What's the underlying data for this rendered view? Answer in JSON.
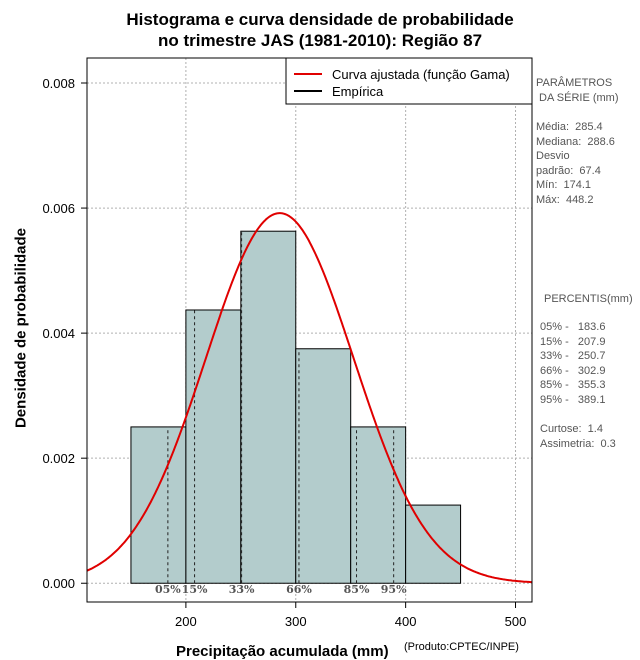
{
  "chart_data": {
    "type": "histogram",
    "title": "Histograma e curva densidade de probabilidade",
    "subtitle": "no trimestre JAS (1981-2010): Região 87",
    "xlabel": "Precipitação acumulada (mm)",
    "ylabel": "Densidade de probabilidade",
    "xlim": [
      110,
      515
    ],
    "ylim": [
      -0.0003,
      0.0084
    ],
    "x_ticks": [
      200,
      300,
      400,
      500
    ],
    "y_ticks": [
      0.0,
      0.002,
      0.004,
      0.006,
      0.008
    ],
    "y_tick_labels": [
      "0.000",
      "0.002",
      "0.004",
      "0.006",
      "0.008"
    ],
    "grid": true,
    "bin_edges": [
      150,
      200,
      250,
      300,
      350,
      400,
      450
    ],
    "densities": [
      0.0025,
      0.00437,
      0.00563,
      0.00375,
      0.0025,
      0.00125
    ],
    "bar_color": "#b3cccc",
    "curve": {
      "name": "Curva ajustada (função Gama)",
      "color": "#e00000",
      "mean": 285.4,
      "sd": 67.4
    },
    "legend": [
      {
        "label": "Curva ajustada (função Gama)",
        "color": "#e00000"
      },
      {
        "label": "Empírica",
        "color": "#000000"
      }
    ],
    "legend_position": "top-right",
    "percentile_lines": [
      {
        "label": "05%",
        "value": 183.6
      },
      {
        "label": "15%",
        "value": 207.9
      },
      {
        "label": "33%",
        "value": 250.7
      },
      {
        "label": "66%",
        "value": 302.9
      },
      {
        "label": "85%",
        "value": 355.3
      },
      {
        "label": "95%",
        "value": 389.1
      }
    ]
  },
  "credit": "(Produto:CPTEC/INPE)",
  "stats": {
    "header": "PARÂMETROS\n DA SÉRIE (mm)",
    "lines": "Média:  285.4\nMediana:  288.6\nDesvio\npadrão:  67.4\nMín:  174.1\nMáx:  448.2"
  },
  "percentis": {
    "header": "PERCENTIS(mm)",
    "lines": "05% -   183.6\n15% -   207.9\n33% -   250.7\n66% -   302.9\n85% -   355.3\n95% -   389.1"
  },
  "shape": {
    "lines": "Curtose:  1.4\nAssimetria:  0.3"
  }
}
